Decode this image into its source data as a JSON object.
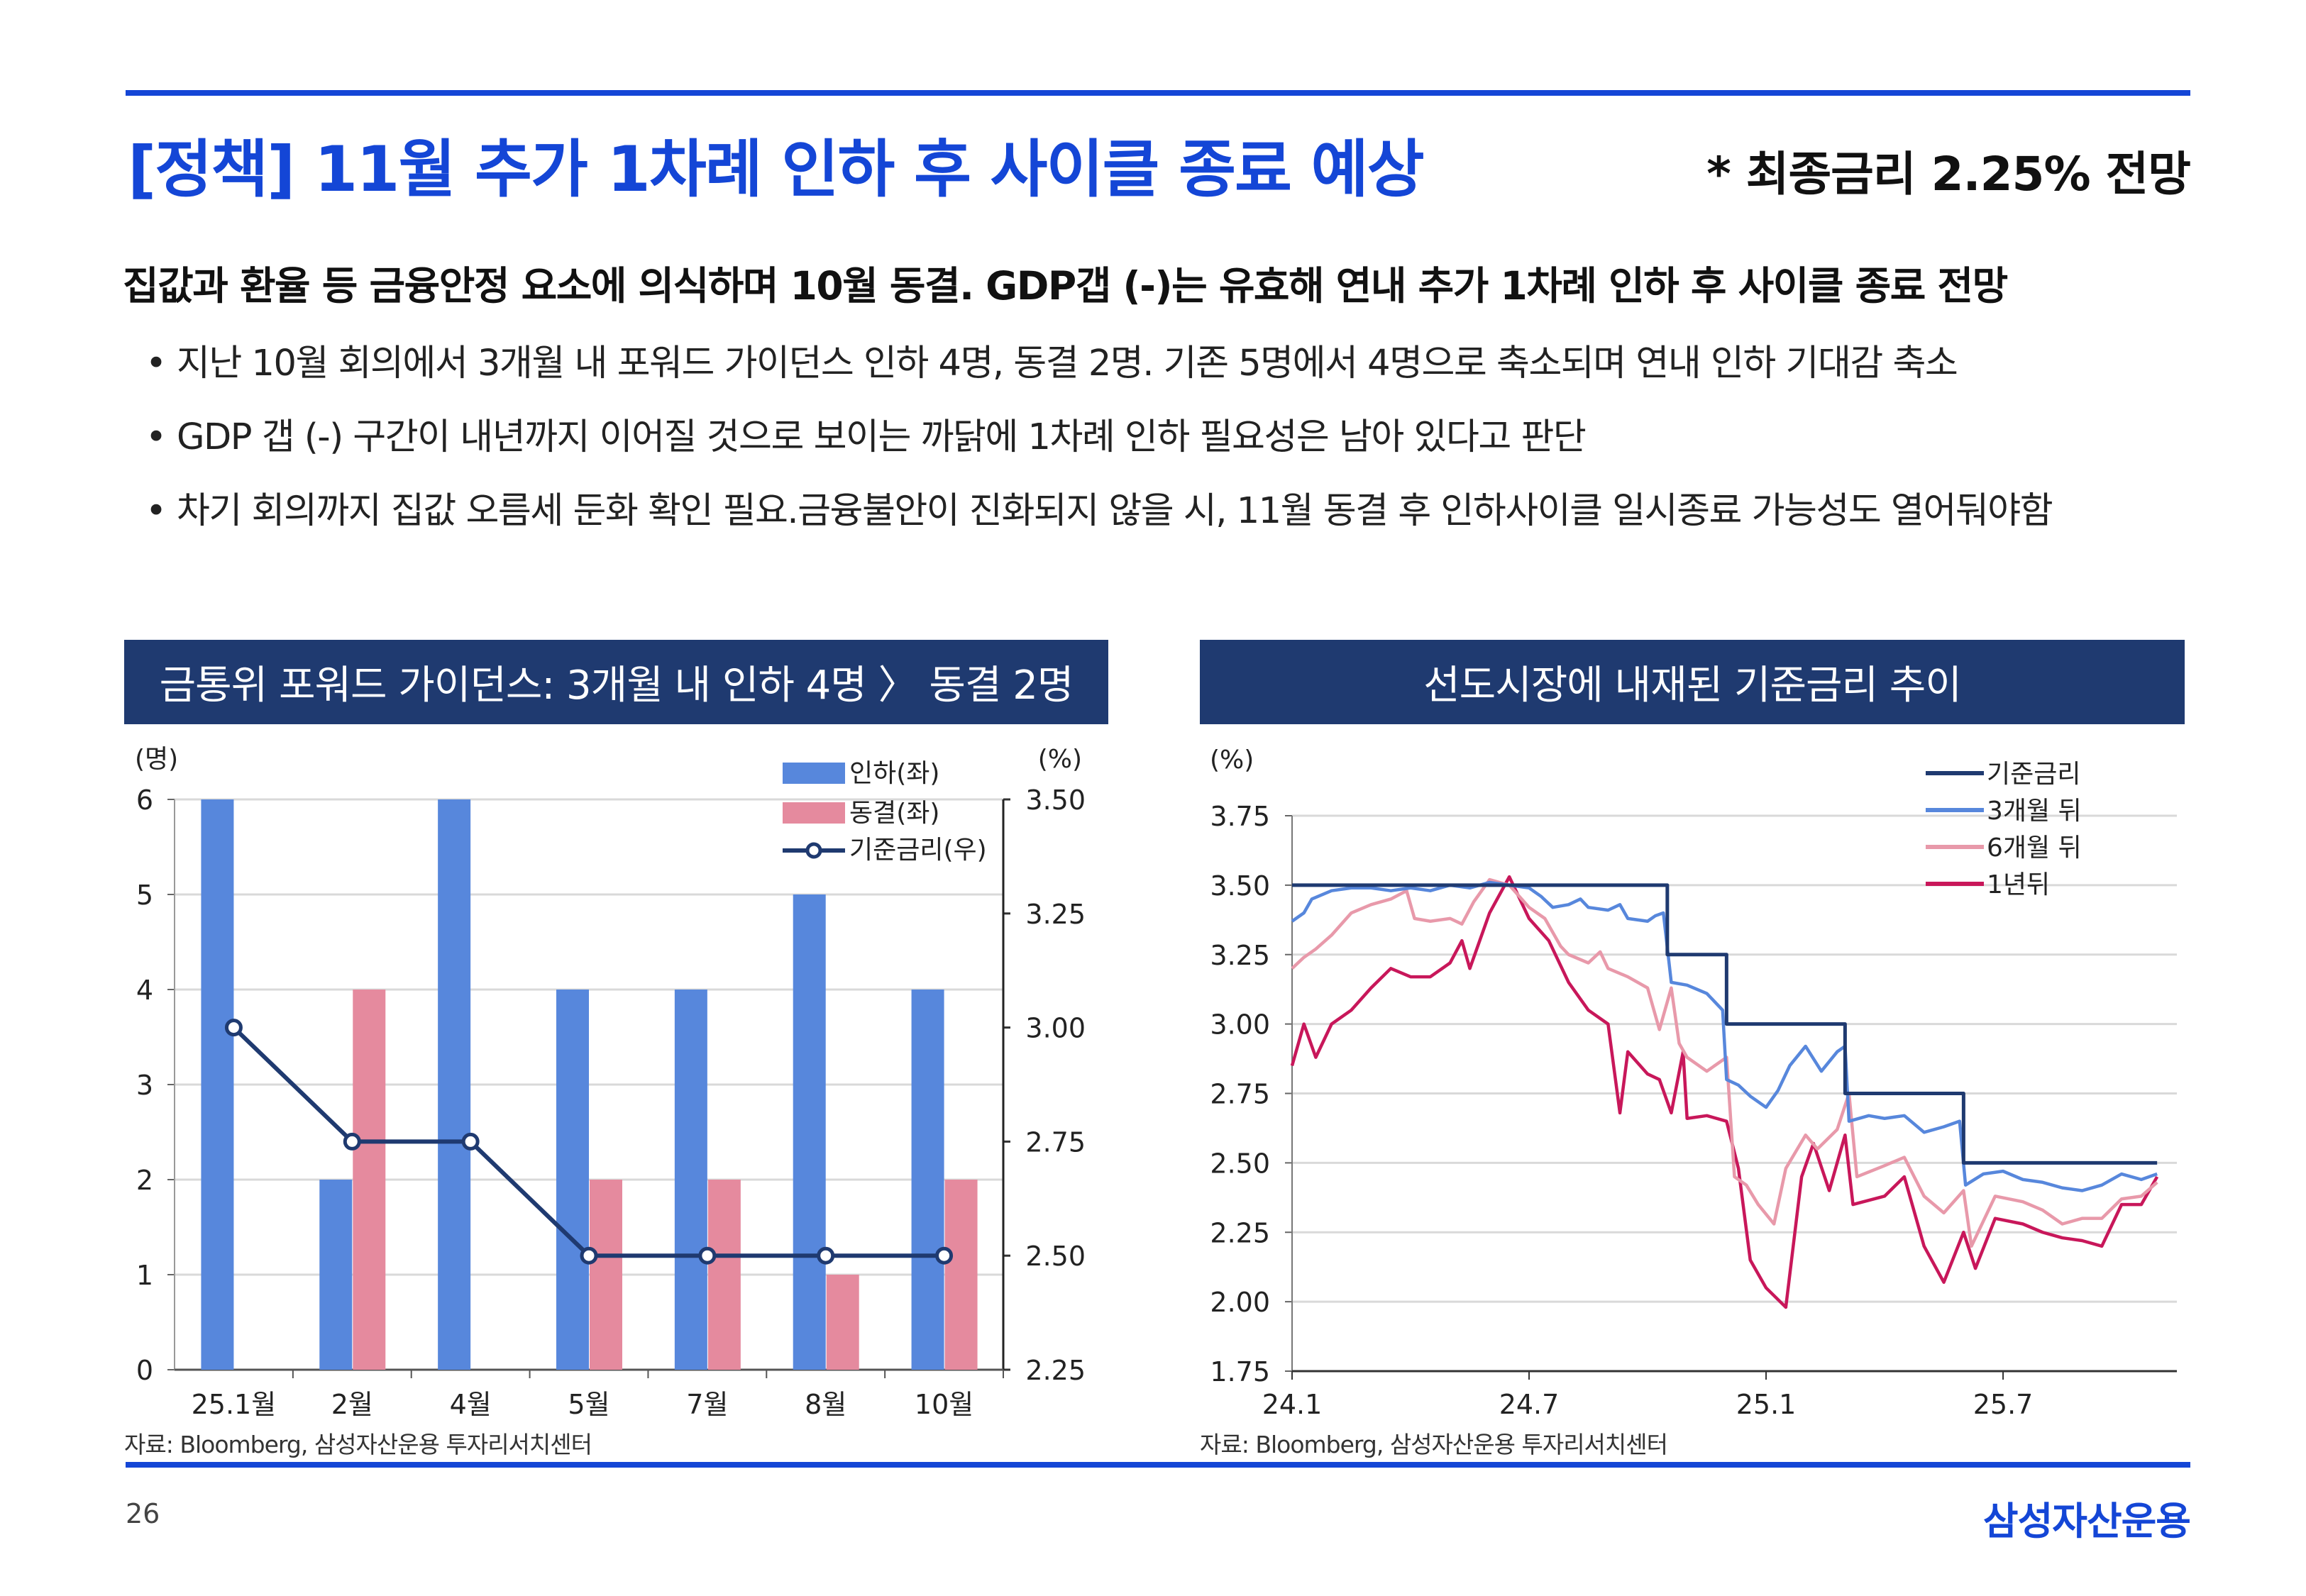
{
  "header": {
    "title": "[정책] 11월 추가 1차례 인하 후 사이클 종료 예상",
    "title_right": "* 최종금리 2.25% 전망"
  },
  "body": {
    "lead": "집값과 환율 등 금융안정 요소에 의식하며 10월 동결. GDP갭 (-)는 유효해 연내 추가 1차례 인하 후 사이클 종료 전망",
    "bullet_symbol": "•",
    "bullets": [
      "지난 10월 회의에서 3개월 내 포워드 가이던스 인하 4명, 동결 2명. 기존 5명에서 4명으로 축소되며 연내 인하 기대감 축소",
      "GDP 갭 (-) 구간이 내년까지 이어질 것으로 보이는 까닭에 1차례 인하 필요성은 남아 있다고 판단",
      "차기 회의까지 집값 오름세 둔화 확인 필요.금융불안이 진화되지 않을 시, 11월 동결 후 인하사이클 일시종료 가능성도 열어둬야함"
    ]
  },
  "footer": {
    "page_number": "26",
    "logo": "삼성자산운용"
  },
  "colors": {
    "accent": "#1446d6",
    "panel_header": "#1f3a70",
    "cut_bar": "#5787dc",
    "hold_bar": "#e58a9e",
    "policy_rate": "#1f3a70",
    "m3": "#5787dc",
    "m6": "#e899aa",
    "y1": "#c8175a"
  },
  "chart_data": [
    {
      "type": "bar",
      "panel_title": "금통위 포워드 가이던스: 3개월 내 인하 4명 〉 동결 2명",
      "source": "자료: Bloomberg, 삼성자산운용 투자리서치센터",
      "ylabel_left": "(명)",
      "ylabel_right": "(%)",
      "categories": [
        "25.1월",
        "2월",
        "4월",
        "5월",
        "7월",
        "8월",
        "10월"
      ],
      "ylim_left": [
        0,
        6
      ],
      "yticks_left": [
        "0",
        "1",
        "2",
        "3",
        "4",
        "5",
        "6"
      ],
      "ylim_right": [
        2.25,
        3.5
      ],
      "yticks_right": [
        "2.25",
        "2.50",
        "2.75",
        "3.00",
        "3.25",
        "3.50"
      ],
      "legend_position": "top-right",
      "series": [
        {
          "name": "인하(좌)",
          "axis": "left",
          "kind": "bar",
          "values": [
            6,
            2,
            6,
            4,
            4,
            5,
            4
          ]
        },
        {
          "name": "동결(좌)",
          "axis": "left",
          "kind": "bar",
          "values": [
            0,
            4,
            0,
            2,
            2,
            1,
            2
          ]
        },
        {
          "name": "기준금리(우)",
          "axis": "right",
          "kind": "line",
          "values": [
            3.0,
            2.75,
            2.75,
            2.5,
            2.5,
            2.5,
            2.5
          ]
        }
      ],
      "grid": true
    },
    {
      "type": "line",
      "panel_title": "선도시장에 내재된 기준금리 추이",
      "source": "자료: Bloomberg, 삼성자산운용 투자리서치센터",
      "ylabel": "(%)",
      "x_unit": "months since 2024-01",
      "xlim": [
        0,
        22.4
      ],
      "xticks": [
        {
          "x": 0,
          "label": "24.1"
        },
        {
          "x": 6,
          "label": "24.7"
        },
        {
          "x": 12,
          "label": "25.1"
        },
        {
          "x": 18,
          "label": "25.7"
        }
      ],
      "ylim": [
        1.75,
        3.75
      ],
      "yticks": [
        "1.75",
        "2.00",
        "2.25",
        "2.50",
        "2.75",
        "3.00",
        "3.25",
        "3.50",
        "3.75"
      ],
      "legend_position": "top-right",
      "grid": true,
      "series": [
        {
          "name": "기준금리",
          "points": [
            [
              0,
              3.5
            ],
            [
              9.5,
              3.5
            ],
            [
              9.5,
              3.25
            ],
            [
              11,
              3.25
            ],
            [
              11,
              3.0
            ],
            [
              14,
              3.0
            ],
            [
              14,
              2.75
            ],
            [
              17,
              2.75
            ],
            [
              17,
              2.5
            ],
            [
              21.9,
              2.5
            ]
          ]
        },
        {
          "name": "3개월 뒤",
          "points": [
            [
              0,
              3.37
            ],
            [
              0.3,
              3.4
            ],
            [
              0.5,
              3.45
            ],
            [
              1,
              3.48
            ],
            [
              1.5,
              3.49
            ],
            [
              2,
              3.49
            ],
            [
              2.5,
              3.48
            ],
            [
              3,
              3.49
            ],
            [
              3.5,
              3.48
            ],
            [
              4,
              3.5
            ],
            [
              4.5,
              3.49
            ],
            [
              5,
              3.51
            ],
            [
              5.5,
              3.5
            ],
            [
              6,
              3.49
            ],
            [
              6.3,
              3.46
            ],
            [
              6.6,
              3.42
            ],
            [
              7,
              3.43
            ],
            [
              7.3,
              3.45
            ],
            [
              7.5,
              3.42
            ],
            [
              8,
              3.41
            ],
            [
              8.3,
              3.43
            ],
            [
              8.5,
              3.38
            ],
            [
              9,
              3.37
            ],
            [
              9.2,
              3.39
            ],
            [
              9.4,
              3.4
            ],
            [
              9.6,
              3.15
            ],
            [
              10,
              3.14
            ],
            [
              10.5,
              3.11
            ],
            [
              10.9,
              3.05
            ],
            [
              11.0,
              2.8
            ],
            [
              11.3,
              2.78
            ],
            [
              11.6,
              2.74
            ],
            [
              12,
              2.7
            ],
            [
              12.3,
              2.76
            ],
            [
              12.6,
              2.85
            ],
            [
              13,
              2.92
            ],
            [
              13.4,
              2.83
            ],
            [
              13.8,
              2.9
            ],
            [
              14,
              2.92
            ],
            [
              14.1,
              2.65
            ],
            [
              14.6,
              2.67
            ],
            [
              15,
              2.66
            ],
            [
              15.5,
              2.67
            ],
            [
              16,
              2.61
            ],
            [
              16.5,
              2.63
            ],
            [
              16.9,
              2.65
            ],
            [
              17.05,
              2.42
            ],
            [
              17.5,
              2.46
            ],
            [
              18,
              2.47
            ],
            [
              18.5,
              2.44
            ],
            [
              19,
              2.43
            ],
            [
              19.5,
              2.41
            ],
            [
              20,
              2.4
            ],
            [
              20.5,
              2.42
            ],
            [
              21,
              2.46
            ],
            [
              21.5,
              2.44
            ],
            [
              21.9,
              2.46
            ]
          ]
        },
        {
          "name": "6개월 뒤",
          "points": [
            [
              0,
              3.2
            ],
            [
              0.3,
              3.24
            ],
            [
              0.6,
              3.27
            ],
            [
              1,
              3.32
            ],
            [
              1.5,
              3.4
            ],
            [
              2,
              3.43
            ],
            [
              2.5,
              3.45
            ],
            [
              2.9,
              3.48
            ],
            [
              3.1,
              3.38
            ],
            [
              3.5,
              3.37
            ],
            [
              4,
              3.38
            ],
            [
              4.3,
              3.36
            ],
            [
              4.6,
              3.44
            ],
            [
              5,
              3.52
            ],
            [
              5.5,
              3.5
            ],
            [
              6,
              3.42
            ],
            [
              6.4,
              3.38
            ],
            [
              6.8,
              3.28
            ],
            [
              7,
              3.25
            ],
            [
              7.5,
              3.22
            ],
            [
              7.8,
              3.26
            ],
            [
              8,
              3.2
            ],
            [
              8.5,
              3.17
            ],
            [
              9,
              3.13
            ],
            [
              9.3,
              2.98
            ],
            [
              9.6,
              3.13
            ],
            [
              9.8,
              2.93
            ],
            [
              10,
              2.88
            ],
            [
              10.5,
              2.83
            ],
            [
              11,
              2.88
            ],
            [
              11.2,
              2.45
            ],
            [
              11.5,
              2.42
            ],
            [
              11.8,
              2.35
            ],
            [
              12.2,
              2.28
            ],
            [
              12.5,
              2.48
            ],
            [
              13,
              2.6
            ],
            [
              13.3,
              2.55
            ],
            [
              13.8,
              2.62
            ],
            [
              14.1,
              2.75
            ],
            [
              14.3,
              2.45
            ],
            [
              15,
              2.49
            ],
            [
              15.5,
              2.52
            ],
            [
              16,
              2.38
            ],
            [
              16.5,
              2.32
            ],
            [
              17,
              2.4
            ],
            [
              17.2,
              2.2
            ],
            [
              17.8,
              2.38
            ],
            [
              18.5,
              2.36
            ],
            [
              19,
              2.33
            ],
            [
              19.5,
              2.28
            ],
            [
              20,
              2.3
            ],
            [
              20.5,
              2.3
            ],
            [
              21,
              2.37
            ],
            [
              21.5,
              2.38
            ],
            [
              21.9,
              2.43
            ]
          ]
        },
        {
          "name": "1년뒤",
          "points": [
            [
              0,
              2.85
            ],
            [
              0.3,
              3.0
            ],
            [
              0.6,
              2.88
            ],
            [
              1,
              3.0
            ],
            [
              1.5,
              3.05
            ],
            [
              2,
              3.13
            ],
            [
              2.5,
              3.2
            ],
            [
              3,
              3.17
            ],
            [
              3.5,
              3.17
            ],
            [
              4,
              3.22
            ],
            [
              4.3,
              3.3
            ],
            [
              4.5,
              3.2
            ],
            [
              5,
              3.4
            ],
            [
              5.5,
              3.53
            ],
            [
              6,
              3.38
            ],
            [
              6.5,
              3.3
            ],
            [
              7,
              3.15
            ],
            [
              7.5,
              3.05
            ],
            [
              8,
              3.0
            ],
            [
              8.3,
              2.68
            ],
            [
              8.5,
              2.9
            ],
            [
              9,
              2.82
            ],
            [
              9.3,
              2.8
            ],
            [
              9.6,
              2.68
            ],
            [
              9.9,
              2.9
            ],
            [
              10,
              2.66
            ],
            [
              10.5,
              2.67
            ],
            [
              11,
              2.65
            ],
            [
              11.3,
              2.48
            ],
            [
              11.6,
              2.15
            ],
            [
              12,
              2.05
            ],
            [
              12.5,
              1.98
            ],
            [
              12.9,
              2.45
            ],
            [
              13.2,
              2.57
            ],
            [
              13.6,
              2.4
            ],
            [
              14,
              2.6
            ],
            [
              14.2,
              2.35
            ],
            [
              15,
              2.38
            ],
            [
              15.5,
              2.45
            ],
            [
              16,
              2.2
            ],
            [
              16.5,
              2.07
            ],
            [
              17,
              2.25
            ],
            [
              17.3,
              2.12
            ],
            [
              17.8,
              2.3
            ],
            [
              18.5,
              2.28
            ],
            [
              19,
              2.25
            ],
            [
              19.5,
              2.23
            ],
            [
              20,
              2.22
            ],
            [
              20.5,
              2.2
            ],
            [
              21,
              2.35
            ],
            [
              21.5,
              2.35
            ],
            [
              21.9,
              2.45
            ]
          ]
        }
      ]
    }
  ]
}
